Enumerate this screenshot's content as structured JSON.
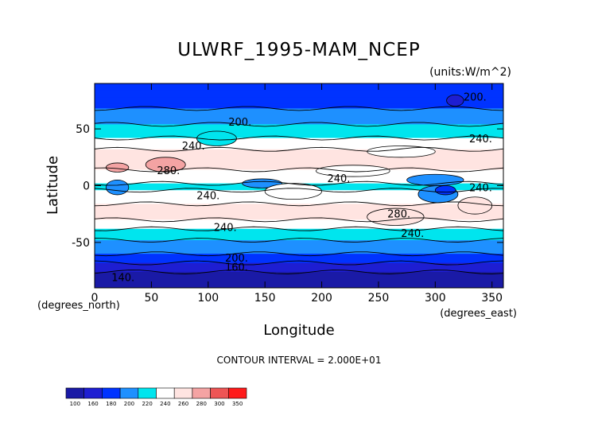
{
  "chart_data": {
    "type": "heatmap",
    "title": "ULWRF_1995-MAM_NCEP",
    "units_label": "(units:W/m^2)",
    "xlabel": "Longitude",
    "ylabel": "Latitude",
    "x_unit_label": "(degrees_east)",
    "y_unit_label": "(degrees_north)",
    "xlim": [
      0,
      360
    ],
    "ylim": [
      -90,
      90
    ],
    "x_ticks": [
      "0",
      "50",
      "100",
      "150",
      "200",
      "250",
      "300",
      "350"
    ],
    "x_tick_values": [
      0,
      50,
      100,
      150,
      200,
      250,
      300,
      350
    ],
    "y_ticks": [
      "50",
      "0",
      "-50"
    ],
    "y_tick_values": [
      50,
      0,
      -50
    ],
    "contour_interval_label": "CONTOUR INTERVAL = 2.000E+01",
    "contour_labels": [
      {
        "text": "200.",
        "lon": 335,
        "lat": 75
      },
      {
        "text": "200.",
        "lon": 128,
        "lat": 53
      },
      {
        "text": "240.",
        "lon": 87,
        "lat": 32
      },
      {
        "text": "240.",
        "lon": 340,
        "lat": 38
      },
      {
        "text": "280.",
        "lon": 65,
        "lat": 10
      },
      {
        "text": "240.",
        "lon": 215,
        "lat": 3
      },
      {
        "text": "240.",
        "lon": 340,
        "lat": -5
      },
      {
        "text": "240.",
        "lon": 100,
        "lat": -12
      },
      {
        "text": "280.",
        "lon": 268,
        "lat": -28
      },
      {
        "text": "240.",
        "lon": 280,
        "lat": -45
      },
      {
        "text": "240.",
        "lon": 115,
        "lat": -40
      },
      {
        "text": "200.",
        "lon": 125,
        "lat": -67
      },
      {
        "text": "160.",
        "lon": 125,
        "lat": -75
      },
      {
        "text": "140.",
        "lon": 25,
        "lat": -84
      }
    ],
    "colorbar": {
      "levels": [
        "100",
        "160",
        "180",
        "200",
        "220",
        "240",
        "260",
        "280",
        "300",
        "350"
      ],
      "colors": [
        "#1a1aa6",
        "#1e1ed2",
        "#0033ff",
        "#1e90ff",
        "#00e5ee",
        "#ffffff",
        "#ffe4e1",
        "#f4a3a3",
        "#ee5555",
        "#ff1a1a"
      ]
    },
    "zonal_profile": [
      {
        "lat": 88,
        "value": 180
      },
      {
        "lat": 80,
        "value": 185
      },
      {
        "lat": 70,
        "value": 195
      },
      {
        "lat": 60,
        "value": 212
      },
      {
        "lat": 50,
        "value": 225
      },
      {
        "lat": 40,
        "value": 245
      },
      {
        "lat": 30,
        "value": 262
      },
      {
        "lat": 20,
        "value": 270
      },
      {
        "lat": 10,
        "value": 255
      },
      {
        "lat": 0,
        "value": 235
      },
      {
        "lat": -10,
        "value": 250
      },
      {
        "lat": -20,
        "value": 268
      },
      {
        "lat": -30,
        "value": 262
      },
      {
        "lat": -40,
        "value": 235
      },
      {
        "lat": -50,
        "value": 215
      },
      {
        "lat": -60,
        "value": 200
      },
      {
        "lat": -70,
        "value": 175
      },
      {
        "lat": -80,
        "value": 150
      },
      {
        "lat": -88,
        "value": 140
      }
    ],
    "regional_features": [
      {
        "lon0": 310,
        "lon1": 325,
        "lat0": 70,
        "lat1": 80,
        "value": 175
      },
      {
        "lon0": 275,
        "lon1": 325,
        "lat0": 0,
        "lat1": 10,
        "value": 215
      },
      {
        "lon0": 285,
        "lon1": 320,
        "lat0": -15,
        "lat1": 0,
        "value": 210
      },
      {
        "lon0": 300,
        "lon1": 318,
        "lat0": -8,
        "lat1": 0,
        "value": 190
      },
      {
        "lon0": 10,
        "lon1": 30,
        "lat0": -8,
        "lat1": 5,
        "value": 215
      },
      {
        "lon0": 130,
        "lon1": 165,
        "lat0": -2,
        "lat1": 6,
        "value": 215
      },
      {
        "lon0": 45,
        "lon1": 80,
        "lat0": 12,
        "lat1": 25,
        "value": 285
      },
      {
        "lon0": 10,
        "lon1": 30,
        "lat0": 12,
        "lat1": 20,
        "value": 282
      },
      {
        "lon0": 90,
        "lon1": 125,
        "lat0": 35,
        "lat1": 48,
        "value": 235
      },
      {
        "lon0": 240,
        "lon1": 300,
        "lat0": 25,
        "lat1": 35,
        "value": 248
      },
      {
        "lon0": 195,
        "lon1": 260,
        "lat0": 8,
        "lat1": 18,
        "value": 258
      },
      {
        "lon0": 150,
        "lon1": 200,
        "lat0": -12,
        "lat1": 2,
        "value": 242
      },
      {
        "lon0": 320,
        "lon1": 350,
        "lat0": -25,
        "lat1": -10,
        "value": 268
      },
      {
        "lon0": 240,
        "lon1": 290,
        "lat0": -35,
        "lat1": -20,
        "value": 272
      }
    ]
  }
}
